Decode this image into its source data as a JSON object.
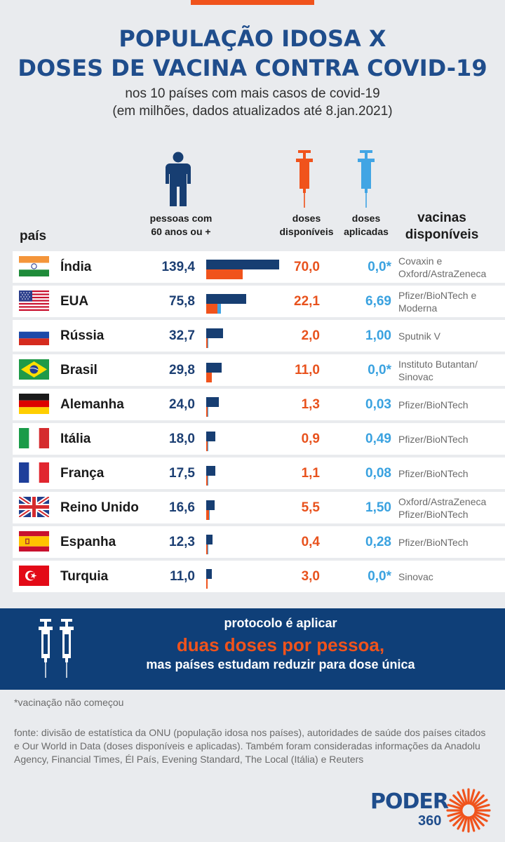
{
  "header": {
    "title_line1": "POPULAÇÃO IDOSA X",
    "title_line2": "DOSES DE VACINA CONTRA COVID-19",
    "subtitle_line1": "nos 10 países com mais casos de covid-19",
    "subtitle_line2": "(em milhões, dados atualizados até 8.jan.2021)"
  },
  "columns": {
    "pais": "país",
    "pessoas_line1": "pessoas com",
    "pessoas_line2": "60 anos ou +",
    "disponiveis_line1": "doses",
    "disponiveis_line2": "disponíveis",
    "aplicadas_line1": "doses",
    "aplicadas_line2": "aplicadas",
    "vacinas_line1": "vacinas",
    "vacinas_line2": "disponíveis"
  },
  "icons": {
    "person": "person-icon",
    "syringe_available": "syringe-orange-icon",
    "syringe_applied": "syringe-blue-icon"
  },
  "colors": {
    "population": "#173e72",
    "available": "#f0531c",
    "applied": "#42a5e4",
    "banner": "#0f3f78"
  },
  "chart_data": {
    "type": "bar",
    "categories": [
      "Índia",
      "EUA",
      "Rússia",
      "Brasil",
      "Alemanha",
      "Itália",
      "França",
      "Reino Unido",
      "Espanha",
      "Turquia"
    ],
    "series": [
      {
        "name": "pessoas com 60 anos ou +",
        "values": [
          139.4,
          75.8,
          32.7,
          29.8,
          24.0,
          18.0,
          17.5,
          16.6,
          12.3,
          11.0
        ]
      },
      {
        "name": "doses disponíveis",
        "values": [
          70.0,
          22.1,
          2.0,
          11.0,
          1.3,
          0.9,
          1.1,
          5.5,
          0.4,
          3.0
        ]
      },
      {
        "name": "doses aplicadas",
        "values": [
          0.0,
          6.69,
          1.0,
          0.0,
          0.03,
          0.49,
          0.08,
          1.5,
          0.28,
          0.0
        ]
      }
    ],
    "title": "POPULAÇÃO IDOSA X DOSES DE VACINA CONTRA COVID-19",
    "subtitle": "nos 10 países com mais casos de covid-19 (em milhões, dados atualizados até 8.jan.2021)",
    "xlim": [
      0,
      139.4
    ]
  },
  "rows": [
    {
      "flag": "india-flag",
      "country": "Índia",
      "pop": "139,4",
      "dis": "70,0",
      "apl": "0,0*",
      "vac": "Covaxin e Oxford/AstraZeneca"
    },
    {
      "flag": "usa-flag",
      "country": "EUA",
      "pop": "75,8",
      "dis": "22,1",
      "apl": "6,69",
      "vac": "Pfizer/BioNTech e Moderna"
    },
    {
      "flag": "russia-flag",
      "country": "Rússia",
      "pop": "32,7",
      "dis": "2,0",
      "apl": "1,00",
      "vac": "Sputnik V"
    },
    {
      "flag": "brazil-flag",
      "country": "Brasil",
      "pop": "29,8",
      "dis": "11,0",
      "apl": "0,0*",
      "vac": "Instituto Butantan/ Sinovac"
    },
    {
      "flag": "germany-flag",
      "country": "Alemanha",
      "pop": "24,0",
      "dis": "1,3",
      "apl": "0,03",
      "vac": "Pfizer/BioNTech"
    },
    {
      "flag": "italy-flag",
      "country": "Itália",
      "pop": "18,0",
      "dis": "0,9",
      "apl": "0,49",
      "vac": "Pfizer/BioNTech"
    },
    {
      "flag": "france-flag",
      "country": "França",
      "pop": "17,5",
      "dis": "1,1",
      "apl": "0,08",
      "vac": "Pfizer/BioNTech"
    },
    {
      "flag": "uk-flag",
      "country": "Reino Unido",
      "pop": "16,6",
      "dis": "5,5",
      "apl": "1,50",
      "vac": "Oxford/AstraZeneca Pfizer/BioNTech"
    },
    {
      "flag": "spain-flag",
      "country": "Espanha",
      "pop": "12,3",
      "dis": "0,4",
      "apl": "0,28",
      "vac": "Pfizer/BioNTech"
    },
    {
      "flag": "turkey-flag",
      "country": "Turquia",
      "pop": "11,0",
      "dis": "3,0",
      "apl": "0,0*",
      "vac": "Sinovac"
    }
  ],
  "protocol": {
    "line1": "protocolo é aplicar",
    "line2": "duas doses por pessoa,",
    "line3": "mas países estudam reduzir para dose única",
    "icon": "two-syringes-icon"
  },
  "footnote": "*vacinação não começou",
  "source": "fonte: divisão de estatística da ONU (população idosa nos países), autoridades de saúde dos países citados e Our World in Data (doses disponíveis e aplicadas). Também foram consideradas informações da Anadolu Agency, Financial Times, Él País, Evening Standard, The Local (Itália) e Reuters",
  "logo": {
    "name": "PODER",
    "sub": "360"
  }
}
